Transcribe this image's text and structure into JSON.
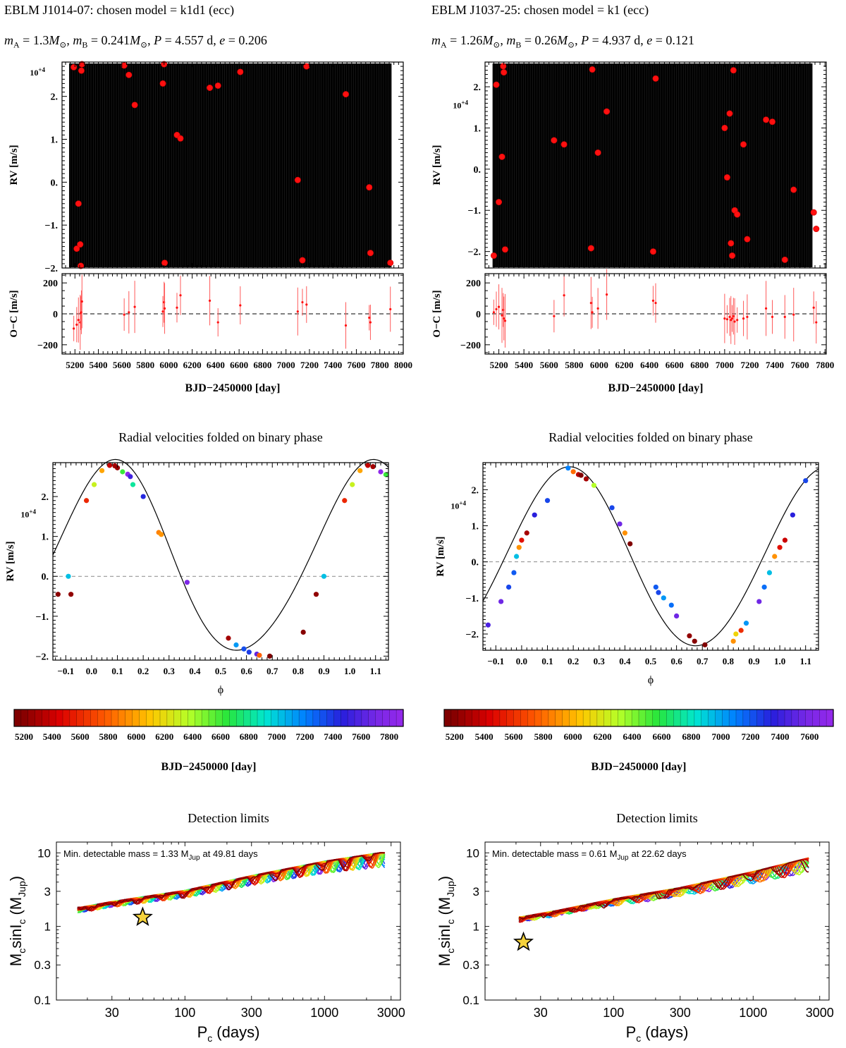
{
  "columns": [
    {
      "header_title": "EBLM J1014-07: chosen model = k1d1 (ecc)",
      "params_text": "m_A = 1.3M☉, m_B = 0.241M☉, P = 4.557 d, e = 0.206",
      "rv_panel": {
        "ylabel": "RV [m/s]",
        "scale_label": "10+4",
        "yticks": [
          "−2.",
          "−1.",
          "0.",
          "1.",
          "2."
        ],
        "ytick_values": [
          -2,
          -1,
          0,
          1,
          2
        ]
      },
      "residual_panel": {
        "ylabel": "O−C [m/s]",
        "yticks": [
          "−200",
          "0",
          "200"
        ],
        "ytick_values": [
          -200,
          0,
          200
        ]
      },
      "time_axis": {
        "xlabel": "BJD−2450000 [day]",
        "xticks": [
          "5200",
          "5400",
          "5600",
          "5800",
          "6000",
          "6200",
          "6400",
          "6600",
          "6800",
          "7000",
          "7200",
          "7400",
          "7600",
          "7800",
          "8000"
        ],
        "xlim": [
          5090,
          8000
        ]
      },
      "phase_panel": {
        "title": "Radial velocities folded on binary phase",
        "xlabel": "ϕ",
        "ylabel": "RV [m/s]",
        "scale_label": "10+4",
        "xticks": [
          "−0.1",
          "0.0",
          "0.1",
          "0.2",
          "0.3",
          "0.4",
          "0.5",
          "0.6",
          "0.7",
          "0.8",
          "0.9",
          "1.0",
          "1.1"
        ],
        "yticks": [
          "−2.",
          "−1.",
          "0.",
          "1.",
          "2."
        ]
      },
      "colorbar": {
        "ticks": [
          "5200",
          "5400",
          "5600",
          "5800",
          "6000",
          "6200",
          "6400",
          "6600",
          "6800",
          "7000",
          "7200",
          "7400",
          "7600",
          "7800"
        ],
        "label": "BJD−2450000 [day]"
      },
      "detection_panel": {
        "title": "Detection limits",
        "annotation_prefix": "Min. detectable mass = 1.33 M",
        "annotation_sub": "Jup",
        "annotation_suffix": "at 49.81 days",
        "xlabel_main": "P",
        "xlabel_sub": "c",
        "xlabel_rest": "(days)",
        "ylabel_a": "M",
        "ylabel_a_sub": "c",
        "ylabel_b": "sinI",
        "ylabel_b_sub": "c",
        "ylabel_c": "(M",
        "ylabel_c_sub": "Jup",
        "ylabel_d": ")",
        "xticks": [
          "30",
          "100",
          "300",
          "1000",
          "3000"
        ],
        "yticks": [
          "0.1",
          "0.3",
          "1",
          "3",
          "10"
        ]
      }
    },
    {
      "header_title": "EBLM J1037-25: chosen model = k1 (ecc)",
      "params_text": "m_A = 1.26M☉, m_B = 0.26M☉, P = 4.937 d, e = 0.121",
      "rv_panel": {
        "ylabel": "RV [m/s]",
        "scale_label": "10+4",
        "yticks": [
          "−2.",
          "−1.",
          "0.",
          "1.",
          "2."
        ],
        "ytick_values": [
          -2,
          -1,
          0,
          1,
          2
        ]
      },
      "residual_panel": {
        "ylabel": "O−C [m/s]",
        "yticks": [
          "−200",
          "0",
          "200"
        ],
        "ytick_values": [
          -200,
          0,
          200
        ]
      },
      "time_axis": {
        "xlabel": "BJD−2450000 [day]",
        "xticks": [
          "5200",
          "5400",
          "5600",
          "5800",
          "6000",
          "6200",
          "6400",
          "6600",
          "6800",
          "7000",
          "7200",
          "7400",
          "7600",
          "7800"
        ],
        "xlim": [
          5090,
          7810
        ]
      },
      "phase_panel": {
        "title": "Radial velocities folded on binary phase",
        "xlabel": "ϕ",
        "ylabel": "RV [m/s]",
        "scale_label": "10+4",
        "xticks": [
          "−0.1",
          "0.0",
          "0.1",
          "0.2",
          "0.3",
          "0.4",
          "0.5",
          "0.6",
          "0.7",
          "0.8",
          "0.9",
          "1.0",
          "1.1"
        ],
        "yticks": [
          "−2.",
          "−1.",
          "0.",
          "1.",
          "2."
        ]
      },
      "colorbar": {
        "ticks": [
          "5200",
          "5400",
          "5600",
          "5800",
          "6000",
          "6200",
          "6400",
          "6600",
          "6800",
          "7000",
          "7200",
          "7400",
          "7600"
        ],
        "label": "BJD−2450000 [day]"
      },
      "detection_panel": {
        "title": "Detection limits",
        "annotation_prefix": "Min. detectable mass = 0.61 M",
        "annotation_sub": "Jup",
        "annotation_suffix": "at 22.62 days",
        "xlabel_main": "P",
        "xlabel_sub": "c",
        "xlabel_rest": "(days)",
        "ylabel_a": "M",
        "ylabel_a_sub": "c",
        "ylabel_b": "sinI",
        "ylabel_b_sub": "c",
        "ylabel_c": "(M",
        "ylabel_c_sub": "Jup",
        "ylabel_d": ")",
        "xticks": [
          "30",
          "100",
          "300",
          "1000",
          "3000"
        ],
        "yticks": [
          "0.1",
          "0.3",
          "1",
          "3",
          "10"
        ]
      }
    }
  ],
  "chart_data": [
    {
      "type": "scatter",
      "panel": "RV vs time, EBLM J1014-07 (RV in units of 10^4 m/s)",
      "x": [
        5190,
        5215,
        5230,
        5245,
        5250,
        5255,
        5260,
        5620,
        5660,
        5710,
        5950,
        5960,
        5965,
        6070,
        6100,
        6350,
        6420,
        6610,
        7100,
        7140,
        7175,
        7510,
        7710,
        7720,
        7890
      ],
      "y": [
        2.68,
        -1.55,
        -0.5,
        -1.45,
        -1.95,
        2.6,
        2.75,
        2.72,
        2.5,
        1.8,
        2.3,
        2.75,
        -1.88,
        1.1,
        1.02,
        2.2,
        2.25,
        2.57,
        0.05,
        -1.82,
        2.7,
        2.05,
        -0.12,
        -1.65,
        -1.88
      ],
      "ylim": [
        -2,
        2.8
      ],
      "xlim": [
        5090,
        8000
      ],
      "model_curve": "unresolved black sinusoid (appears as filled band at this scale)"
    },
    {
      "type": "scatter",
      "panel": "O-C residuals, EBLM J1014-07",
      "x": [
        5190,
        5215,
        5230,
        5245,
        5250,
        5255,
        5260,
        5620,
        5660,
        5710,
        5950,
        5960,
        5965,
        6070,
        6100,
        6350,
        6420,
        6610,
        7100,
        7140,
        7175,
        7510,
        7710,
        7720,
        7890
      ],
      "y": [
        -95,
        -70,
        -40,
        -55,
        5,
        10,
        80,
        -5,
        10,
        45,
        15,
        75,
        35,
        40,
        120,
        85,
        -55,
        55,
        15,
        75,
        60,
        -75,
        -25,
        -55,
        30
      ],
      "ylim": [
        -260,
        260
      ]
    },
    {
      "type": "scatter",
      "panel": "RV vs time, EBLM J1037-25 (RV in units of 10^4 m/s)",
      "x": [
        5160,
        5180,
        5200,
        5225,
        5235,
        5240,
        5250,
        5640,
        5720,
        5935,
        5945,
        5990,
        6060,
        6430,
        6450,
        7000,
        7020,
        7040,
        7050,
        7060,
        7070,
        7080,
        7100,
        7150,
        7180,
        7330,
        7380,
        7480,
        7550,
        7710,
        7730
      ],
      "y": [
        -2.1,
        2.05,
        -0.8,
        0.3,
        2.5,
        2.35,
        -1.95,
        0.7,
        0.6,
        -1.92,
        2.42,
        0.4,
        1.4,
        -2.0,
        2.2,
        1.0,
        -0.2,
        1.35,
        -1.8,
        -2.1,
        2.4,
        -1.0,
        -1.1,
        0.6,
        -1.7,
        1.2,
        1.15,
        -2.2,
        -0.5,
        -1.05,
        -1.45
      ],
      "ylim": [
        -2.4,
        2.6
      ],
      "xlim": [
        5090,
        7810
      ],
      "model_curve": "unresolved black sinusoid (appears as filled band at this scale)"
    },
    {
      "type": "scatter",
      "panel": "O-C residuals, EBLM J1037-25",
      "x": [
        5160,
        5180,
        5200,
        5225,
        5235,
        5240,
        5250,
        5640,
        5720,
        5935,
        5945,
        5990,
        6060,
        6430,
        6450,
        7000,
        7020,
        7040,
        7050,
        7060,
        7070,
        7080,
        7100,
        7150,
        7180,
        7330,
        7380,
        7480,
        7550,
        7710,
        7730
      ],
      "y": [
        10,
        30,
        45,
        -10,
        25,
        -30,
        -45,
        -15,
        120,
        70,
        10,
        35,
        125,
        85,
        70,
        -30,
        -35,
        -20,
        -40,
        -30,
        -15,
        -50,
        -40,
        -30,
        -20,
        35,
        -20,
        -20,
        -5,
        40,
        -55
      ],
      "ylim": [
        -260,
        260
      ]
    },
    {
      "type": "scatter",
      "panel": "RV folded on binary phase, EBLM J1014-07 (RV in units of 10^4 m/s)",
      "model": {
        "K": 2.38,
        "offset": 0.4,
        "phase0": -0.166,
        "eccentric_shape": true
      },
      "x": [
        -0.13,
        -0.09,
        -0.08,
        -0.02,
        0.01,
        0.04,
        0.07,
        0.09,
        0.1,
        0.12,
        0.14,
        0.15,
        0.16,
        0.2,
        0.26,
        0.27,
        0.37,
        0.53,
        0.56,
        0.59,
        0.61,
        0.64,
        0.65,
        0.69,
        0.82,
        0.87,
        0.9,
        0.98,
        1.01,
        1.04,
        1.07,
        1.09,
        1.12,
        1.14
      ],
      "y": [
        -0.45,
        0.0,
        -0.45,
        1.9,
        2.3,
        2.65,
        2.78,
        2.77,
        2.72,
        2.62,
        2.56,
        2.5,
        2.3,
        2.0,
        1.1,
        1.05,
        -0.15,
        -1.55,
        -1.72,
        -1.82,
        -1.9,
        -1.95,
        -1.98,
        -2.0,
        -1.4,
        -0.45,
        0.0,
        1.9,
        2.3,
        2.65,
        2.78,
        2.75,
        2.62,
        2.55
      ],
      "color_bjd": [
        5230,
        7000,
        5250,
        5600,
        6300,
        6000,
        5400,
        5300,
        5260,
        6600,
        7800,
        7500,
        6800,
        7400,
        5900,
        5950,
        7700,
        5300,
        7100,
        7300,
        7350,
        7600,
        5800,
        5200,
        5220,
        5250,
        7000,
        5600,
        6300,
        6000,
        5400,
        5300,
        7800,
        6600
      ],
      "ylim": [
        -2.1,
        2.85
      ],
      "xlim": [
        -0.15,
        1.15
      ]
    },
    {
      "type": "scatter",
      "panel": "RV folded on binary phase, EBLM J1037-25 (RV in units of 10^4 m/s)",
      "model": {
        "K": 2.5,
        "offset": 0.1,
        "phase0": -0.07,
        "eccentric_shape": true
      },
      "x": [
        -0.13,
        -0.08,
        -0.05,
        -0.03,
        -0.02,
        -0.01,
        0.0,
        0.02,
        0.05,
        0.1,
        0.18,
        0.2,
        0.22,
        0.23,
        0.25,
        0.28,
        0.35,
        0.38,
        0.4,
        0.42,
        0.52,
        0.53,
        0.55,
        0.58,
        0.6,
        0.65,
        0.67,
        0.71,
        0.82,
        0.83,
        0.85,
        0.87,
        0.92,
        0.94,
        0.96,
        0.98,
        1.0,
        1.02,
        1.05,
        1.1
      ],
      "y": [
        -1.75,
        -1.1,
        -0.7,
        -0.3,
        0.15,
        0.4,
        0.6,
        0.8,
        1.3,
        1.7,
        2.6,
        2.5,
        2.42,
        2.4,
        2.3,
        2.12,
        1.5,
        1.05,
        0.8,
        0.5,
        -0.7,
        -0.85,
        -1.0,
        -1.2,
        -1.5,
        -2.05,
        -2.2,
        -2.3,
        -2.2,
        -2.0,
        -1.9,
        -1.7,
        -1.1,
        -0.7,
        -0.3,
        0.15,
        0.4,
        0.6,
        1.3,
        2.25
      ],
      "color_bjd": [
        7400,
        7500,
        7200,
        7150,
        6900,
        5900,
        5500,
        5300,
        7300,
        7200,
        7050,
        5800,
        5350,
        5200,
        5300,
        6300,
        7200,
        7500,
        5900,
        5200,
        7150,
        7200,
        7000,
        7100,
        7500,
        5250,
        5220,
        5200,
        5900,
        6100,
        5600,
        7000,
        7500,
        7100,
        6900,
        5900,
        5500,
        5400,
        7300,
        7200
      ],
      "ylim": [
        -2.45,
        2.75
      ],
      "xlim": [
        -0.15,
        1.15
      ]
    },
    {
      "type": "line",
      "panel": "Detection limits, EBLM J1014-07 (log-log)",
      "x_range_days": [
        17,
        2700
      ],
      "y_approx_mjup": [
        1.75,
        2.1,
        3.0,
        4.8,
        7.6,
        10
      ],
      "x_at_y": [
        18,
        30,
        100,
        300,
        1000,
        2500
      ],
      "highlight_point": {
        "x": 49.81,
        "y": 1.33,
        "label": "star"
      },
      "xlim": [
        12,
        3500
      ],
      "ylim": [
        0.1,
        14
      ],
      "note": "bundle of ~30 colored curves (red→violet) overlaid"
    },
    {
      "type": "line",
      "panel": "Detection limits, EBLM J1037-25 (log-log)",
      "x_range_days": [
        21,
        2500
      ],
      "y_approx_mjup": [
        1.3,
        1.6,
        2.3,
        3.3,
        5.5,
        8.5
      ],
      "x_at_y": [
        22,
        40,
        100,
        300,
        1000,
        2500
      ],
      "highlight_point": {
        "x": 22.62,
        "y": 0.61,
        "label": "star"
      },
      "xlim": [
        12,
        3500
      ],
      "ylim": [
        0.1,
        14
      ],
      "note": "bundle of ~30 colored curves (red→violet) overlaid"
    }
  ]
}
